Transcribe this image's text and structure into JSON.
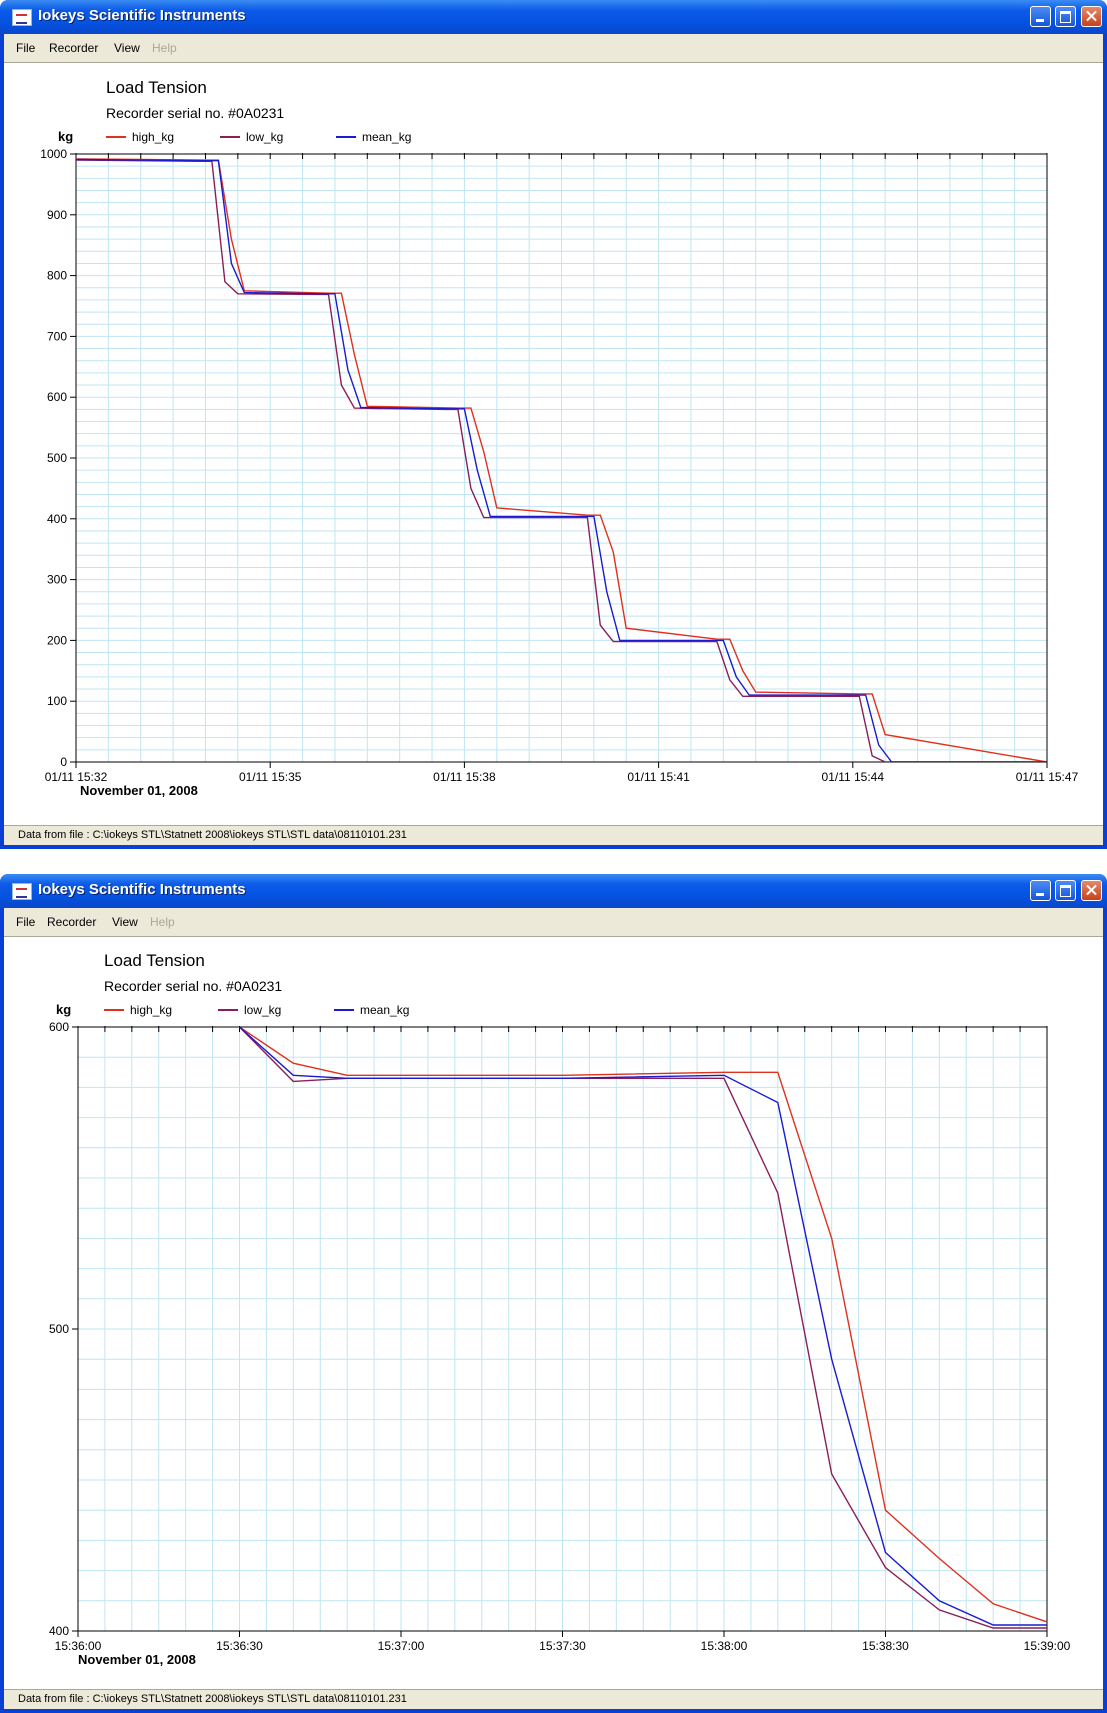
{
  "app": {
    "title": "Iokeys Scientific Instruments",
    "menu": [
      "File",
      "Recorder",
      "View",
      "Help"
    ],
    "status": "Data from file : C:\\iokeys  STL\\Statnett  2008\\iokeys  STL\\STL  data\\08110101.231"
  },
  "colors": {
    "high_kg": "#e0301e",
    "low_kg": "#8a1e5a",
    "mean_kg": "#1a1ad0",
    "grid": "#bfe6f2",
    "grid_major": "#8fd0e6"
  },
  "chart_data": [
    {
      "type": "line",
      "title": "Load Tension",
      "subtitle": "Recorder serial no. #0A0231",
      "ylabel": "kg",
      "date_label": "November  01,  2008",
      "ylim": [
        0,
        1000
      ],
      "yticks": [
        0,
        100,
        200,
        300,
        400,
        500,
        600,
        700,
        800,
        900,
        1000
      ],
      "xlim": [
        "15:32",
        "15:47"
      ],
      "xticks": [
        "01/11 15:32",
        "01/11 15:35",
        "01/11 15:38",
        "01/11 15:41",
        "01/11 15:44",
        "01/11 15:47"
      ],
      "grid": true,
      "legend_position": "top-left",
      "series": [
        {
          "name": "high_kg",
          "x": [
            "15:32:00",
            "15:34:00",
            "15:34:12",
            "15:34:24",
            "15:34:36",
            "15:35:54",
            "15:36:06",
            "15:36:18",
            "15:36:30",
            "15:37:54",
            "15:38:06",
            "15:38:18",
            "15:38:30",
            "15:39:54",
            "15:40:06",
            "15:40:18",
            "15:40:30",
            "15:41:54",
            "15:42:06",
            "15:42:18",
            "15:42:30",
            "15:44:06",
            "15:44:18",
            "15:44:30",
            "15:47:00"
          ],
          "values": [
            992,
            990,
            990,
            860,
            775,
            771,
            771,
            670,
            585,
            582,
            582,
            510,
            418,
            406,
            406,
            345,
            220,
            202,
            202,
            150,
            115,
            112,
            112,
            45,
            0
          ]
        },
        {
          "name": "low_kg",
          "x": [
            "15:32:00",
            "15:33:54",
            "15:34:06",
            "15:34:18",
            "15:34:30",
            "15:35:42",
            "15:35:54",
            "15:36:06",
            "15:36:18",
            "15:37:42",
            "15:37:54",
            "15:38:06",
            "15:38:18",
            "15:39:42",
            "15:39:54",
            "15:40:06",
            "15:40:18",
            "15:41:42",
            "15:41:54",
            "15:42:06",
            "15:42:18",
            "15:43:54",
            "15:44:06",
            "15:44:18",
            "15:44:30",
            "15:47:00"
          ],
          "values": [
            990,
            988,
            988,
            790,
            770,
            769,
            769,
            620,
            582,
            580,
            580,
            450,
            402,
            402,
            402,
            225,
            198,
            198,
            198,
            135,
            108,
            108,
            108,
            10,
            0,
            0
          ]
        },
        {
          "name": "mean_kg",
          "x": [
            "15:32:00",
            "15:34:00",
            "15:34:12",
            "15:34:24",
            "15:34:36",
            "15:35:48",
            "15:36:00",
            "15:36:12",
            "15:36:24",
            "15:37:48",
            "15:38:00",
            "15:38:12",
            "15:38:24",
            "15:39:48",
            "15:40:00",
            "15:40:12",
            "15:40:24",
            "15:41:48",
            "15:42:00",
            "15:42:12",
            "15:42:24",
            "15:44:00",
            "15:44:12",
            "15:44:24",
            "15:44:36",
            "15:47:00"
          ],
          "values": [
            991,
            989,
            989,
            820,
            772,
            770,
            770,
            645,
            583,
            581,
            581,
            480,
            404,
            404,
            404,
            280,
            200,
            200,
            200,
            140,
            110,
            110,
            110,
            28,
            0,
            0
          ]
        }
      ]
    },
    {
      "type": "line",
      "title": "Load Tension",
      "subtitle": "Recorder serial no. #0A0231",
      "ylabel": "kg",
      "date_label": "November  01,  2008",
      "ylim": [
        400,
        600
      ],
      "yticks": [
        400,
        500,
        600
      ],
      "xlim": [
        "15:36:00",
        "15:39:00"
      ],
      "xticks": [
        "15:36:00",
        "15:36:30",
        "15:37:00",
        "15:37:30",
        "15:38:00",
        "15:38:30",
        "15:39:00"
      ],
      "grid": true,
      "legend_position": "top-left",
      "series": [
        {
          "name": "high_kg",
          "x": [
            "15:36:30",
            "15:36:40",
            "15:36:50",
            "15:37:30",
            "15:38:00",
            "15:38:10",
            "15:38:20",
            "15:38:30",
            "15:38:40",
            "15:38:50",
            "15:39:00"
          ],
          "values": [
            600,
            588,
            584,
            584,
            585,
            585,
            530,
            440,
            424,
            409,
            403
          ]
        },
        {
          "name": "low_kg",
          "x": [
            "15:36:30",
            "15:36:40",
            "15:36:50",
            "15:37:30",
            "15:38:00",
            "15:38:10",
            "15:38:20",
            "15:38:30",
            "15:38:40",
            "15:38:50",
            "15:39:00"
          ],
          "values": [
            600,
            582,
            583,
            583,
            583,
            545,
            452,
            421,
            407,
            401,
            401
          ]
        },
        {
          "name": "mean_kg",
          "x": [
            "15:36:30",
            "15:36:40",
            "15:36:50",
            "15:37:30",
            "15:38:00",
            "15:38:10",
            "15:38:20",
            "15:38:30",
            "15:38:40",
            "15:38:50",
            "15:39:00"
          ],
          "values": [
            600,
            584,
            583,
            583,
            584,
            575,
            490,
            426,
            410,
            402,
            402
          ]
        }
      ]
    }
  ]
}
